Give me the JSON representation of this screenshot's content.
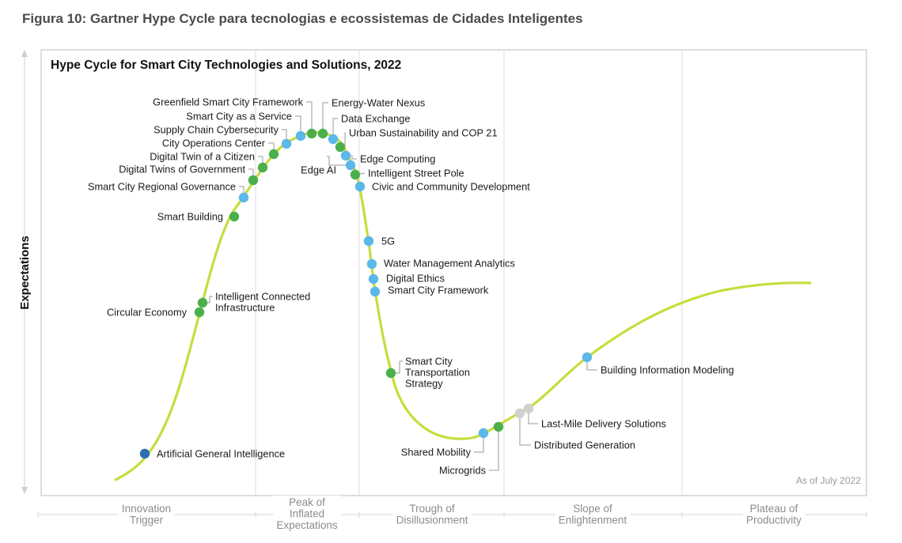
{
  "caption": "Figura 10: Gartner Hype Cycle para tecnologias e ecossistemas de Cidades Inteligentes",
  "chart_data": {
    "type": "scatter",
    "title": "Hype Cycle for Smart City Technologies and Solutions, 2022",
    "ylabel": "Expectations",
    "note": "As of July 2022",
    "curve_color": "#c8dc3c",
    "colors": {
      "blue": "#5bb8e8",
      "green": "#4bb04b",
      "darkblue": "#2e6fb0",
      "gray": "#d0d0d0"
    },
    "phases": [
      {
        "lines": [
          "Innovation",
          "Trigger"
        ]
      },
      {
        "lines": [
          "Peak of",
          "Inflated",
          "Expectations"
        ]
      },
      {
        "lines": [
          "Trough of",
          "Disillusionment"
        ]
      },
      {
        "lines": [
          "Slope of",
          "Enlightenment"
        ]
      },
      {
        "lines": [
          "Plateau of",
          "Productivity"
        ]
      }
    ],
    "points": [
      {
        "label": [
          "Artificial General Intelligence"
        ],
        "color": "darkblue"
      },
      {
        "label": [
          "Circular Economy"
        ],
        "color": "green"
      },
      {
        "label": [
          "Intelligent Connected",
          "Infrastructure"
        ],
        "color": "green"
      },
      {
        "label": [
          "Smart Building"
        ],
        "color": "green"
      },
      {
        "label": [
          "Smart City Regional Governance"
        ],
        "color": "blue"
      },
      {
        "label": [
          "Digital Twins of Government"
        ],
        "color": "green"
      },
      {
        "label": [
          "Digital Twin of a Citizen"
        ],
        "color": "green"
      },
      {
        "label": [
          "City Operations Center"
        ],
        "color": "green"
      },
      {
        "label": [
          "Supply Chain Cybersecurity"
        ],
        "color": "blue"
      },
      {
        "label": [
          "Smart City as a Service"
        ],
        "color": "blue"
      },
      {
        "label": [
          "Greenfield Smart City Framework"
        ],
        "color": "green"
      },
      {
        "label": [
          "Energy-Water Nexus"
        ],
        "color": "green"
      },
      {
        "label": [
          "Data Exchange"
        ],
        "color": "blue"
      },
      {
        "label": [
          "Urban Sustainability and COP 21"
        ],
        "color": "green"
      },
      {
        "label": [
          "Edge Computing"
        ],
        "color": "blue"
      },
      {
        "label": [
          "Edge AI"
        ],
        "color": "blue"
      },
      {
        "label": [
          "Intelligent Street Pole"
        ],
        "color": "green"
      },
      {
        "label": [
          "Civic and Community Development"
        ],
        "color": "blue"
      },
      {
        "label": [
          "5G"
        ],
        "color": "blue"
      },
      {
        "label": [
          "Water Management Analytics"
        ],
        "color": "blue"
      },
      {
        "label": [
          "Digital Ethics"
        ],
        "color": "blue"
      },
      {
        "label": [
          "Smart City Framework"
        ],
        "color": "blue"
      },
      {
        "label": [
          "Smart City",
          "Transportation",
          "Strategy"
        ],
        "color": "green"
      },
      {
        "label": [
          "Shared Mobility"
        ],
        "color": "blue"
      },
      {
        "label": [
          "Microgrids"
        ],
        "color": "green"
      },
      {
        "label": [
          "Distributed Generation"
        ],
        "color": "gray"
      },
      {
        "label": [
          "Last-Mile Delivery Solutions"
        ],
        "color": "gray"
      },
      {
        "label": [
          "Building Information Modeling"
        ],
        "color": "blue"
      }
    ]
  }
}
